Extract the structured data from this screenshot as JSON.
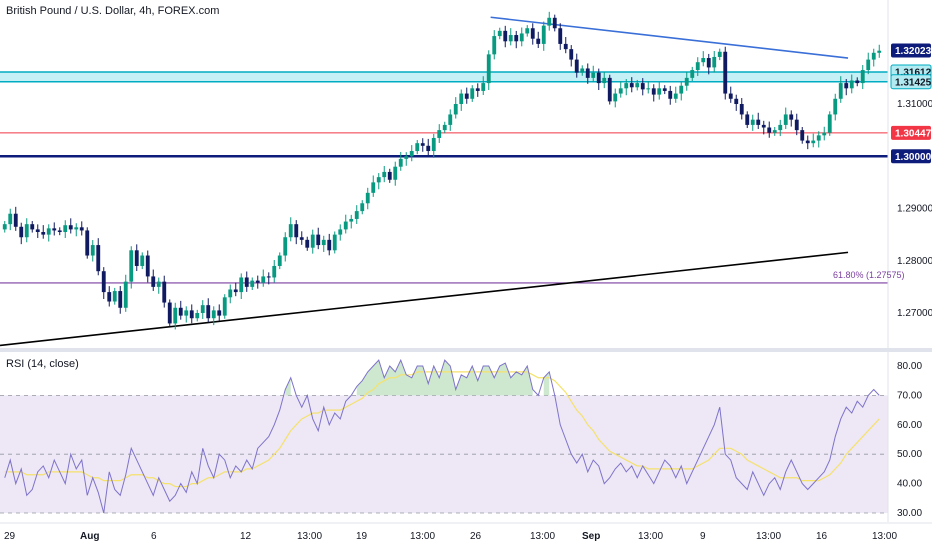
{
  "header": {
    "title": "British Pound / U.S. Dollar, 4h, FOREX.com",
    "rsi_title": "RSI (14, close)"
  },
  "colors": {
    "bull": "#089981",
    "bear": "#101a60",
    "trendline_upper": "#3a6fd8",
    "trendline_lower": "#000000",
    "zone_fill": "#b2ebf2",
    "zone_line": "#00acc1",
    "red_line": "#f23645",
    "navy_line": "#0d1b7a",
    "fib_line": "#7b3fa0",
    "rsi_line": "#7e73c9",
    "rsi_ma": "#f5e26b",
    "rsi_band": "#ede7f6"
  },
  "chart_data": [
    {
      "type": "candlestick",
      "title": "British Pound / U.S. Dollar, 4h, FOREX.com",
      "x_ticks": [
        "29",
        "Aug",
        "6",
        "12",
        "13:00",
        "19",
        "13:00",
        "26",
        "13:00",
        "Sep",
        "13:00",
        "9",
        "13:00",
        "16",
        "13:00"
      ],
      "y_ticks": [
        "1.31000",
        "1.29000",
        "1.28000",
        "1.27000"
      ],
      "y_range": [
        1.2635,
        1.3286
      ],
      "price_labels": [
        {
          "value": 1.32023,
          "text": "1.32023",
          "style": "navy"
        },
        {
          "value": 1.31612,
          "text": "1.31612",
          "style": "cyan"
        },
        {
          "value": 1.31425,
          "text": "1.31425",
          "style": "cyan"
        },
        {
          "value": 1.30447,
          "text": "1.30447",
          "style": "red"
        },
        {
          "value": 1.3,
          "text": "1.30000",
          "style": "navy"
        }
      ],
      "fib_label": "61.80% (1.27575)",
      "levels": {
        "zone_top": 1.31612,
        "zone_bottom": 1.31425,
        "red": 1.30447,
        "navy": 1.3,
        "fib": 1.27575
      },
      "trendlines": [
        {
          "name": "upper",
          "from": [
            0.5525,
            1.3266
          ],
          "to": [
            0.955,
            1.3188
          ]
        },
        {
          "name": "lower",
          "from": [
            0.0,
            1.2638
          ],
          "to": [
            0.955,
            1.2816
          ]
        }
      ],
      "series": [
        {
          "values": [
            1.287,
            1.289,
            1.2865,
            1.2845,
            1.287,
            1.286,
            1.2855,
            1.285,
            1.2862,
            1.2858,
            1.2855,
            1.2868,
            1.286,
            1.2864,
            1.2858,
            1.281,
            1.283,
            1.278,
            1.274,
            1.2722,
            1.2742,
            1.271,
            1.276,
            1.282,
            1.279,
            1.281,
            1.277,
            1.275,
            1.276,
            1.272,
            1.268,
            1.271,
            1.2695,
            1.2705,
            1.269,
            1.27,
            1.2715,
            1.269,
            1.2705,
            1.2695,
            1.273,
            1.2745,
            1.274,
            1.2768,
            1.275,
            1.2762,
            1.2758,
            1.277,
            1.2768,
            1.279,
            1.281,
            1.2845,
            1.287,
            1.2845,
            1.284,
            1.2825,
            1.285,
            1.283,
            1.284,
            1.282,
            1.285,
            1.286,
            1.2875,
            1.288,
            1.2895,
            1.291,
            1.293,
            1.295,
            1.296,
            1.297,
            1.2955,
            1.298,
            1.2995,
            1.3,
            1.301,
            1.3025,
            1.302,
            1.301,
            1.3035,
            1.305,
            1.306,
            1.308,
            1.31,
            1.312,
            1.311,
            1.313,
            1.3125,
            1.314,
            1.3195,
            1.323,
            1.324,
            1.322,
            1.3232,
            1.322,
            1.3235,
            1.3245,
            1.3225,
            1.3215,
            1.325,
            1.3265,
            1.3245,
            1.3215,
            1.3205,
            1.3185,
            1.316,
            1.3168,
            1.315,
            1.316,
            1.314,
            1.315,
            1.3105,
            1.312,
            1.313,
            1.314,
            1.3132,
            1.314,
            1.3128,
            1.313,
            1.3118,
            1.313,
            1.3125,
            1.311,
            1.312,
            1.3135,
            1.315,
            1.3165,
            1.318,
            1.3188,
            1.317,
            1.319,
            1.32,
            1.312,
            1.311,
            1.31,
            1.308,
            1.306,
            1.307,
            1.306,
            1.3055,
            1.3045,
            1.305,
            1.306,
            1.308,
            1.307,
            1.305,
            1.303,
            1.3025,
            1.303,
            1.304,
            1.3045,
            1.308,
            1.311,
            1.314,
            1.313,
            1.3145,
            1.314,
            1.3165,
            1.3185,
            1.3198,
            1.3202
          ]
        }
      ]
    },
    {
      "type": "line",
      "title": "RSI (14, close)",
      "y_ticks": [
        "80.00",
        "70.00",
        "60.00",
        "50.00",
        "40.00",
        "30.00"
      ],
      "y_range": [
        27,
        85
      ],
      "band": [
        30,
        70
      ],
      "series": [
        {
          "name": "RSI",
          "values": [
            42,
            48,
            40,
            45,
            36,
            38,
            44,
            46,
            42,
            48,
            44,
            40,
            50,
            45,
            48,
            36,
            42,
            37,
            30,
            44,
            38,
            36,
            43,
            52,
            48,
            44,
            40,
            36,
            42,
            38,
            34,
            36,
            40,
            37,
            44,
            40,
            52,
            46,
            42,
            50,
            48,
            42,
            46,
            44,
            48,
            45,
            52,
            54,
            56,
            60,
            65,
            72,
            76,
            70,
            66,
            70,
            62,
            58,
            66,
            60,
            64,
            62,
            68,
            70,
            73,
            75,
            78,
            80,
            82,
            76,
            80,
            78,
            82,
            77,
            76,
            80,
            80,
            74,
            80,
            76,
            82,
            80,
            72,
            77,
            76,
            80,
            75,
            80,
            80,
            76,
            80,
            81,
            76,
            78,
            77,
            80,
            72,
            70,
            76,
            78,
            70,
            60,
            55,
            50,
            47,
            50,
            44,
            48,
            46,
            40,
            42,
            45,
            47,
            44,
            46,
            42,
            46,
            43,
            40,
            44,
            48,
            46,
            42,
            46,
            40,
            44,
            48,
            52,
            56,
            60,
            66,
            50,
            48,
            42,
            40,
            38,
            44,
            40,
            36,
            40,
            42,
            38,
            44,
            48,
            44,
            40,
            38,
            40,
            42,
            44,
            48,
            56,
            62,
            66,
            64,
            68,
            66,
            70,
            72,
            70
          ]
        },
        {
          "name": "RSI MA",
          "values": [
            44,
            44,
            44,
            44,
            43,
            43,
            43,
            43,
            44,
            44,
            44,
            44,
            44,
            44,
            44,
            43,
            42,
            42,
            41,
            41,
            41,
            41,
            42,
            43,
            43,
            43,
            42,
            42,
            41,
            40,
            40,
            39,
            39,
            39,
            40,
            40,
            41,
            42,
            42,
            43,
            44,
            44,
            44,
            44,
            45,
            45,
            46,
            47,
            48,
            50,
            52,
            55,
            58,
            60,
            62,
            63,
            64,
            64,
            65,
            65,
            65,
            65,
            66,
            67,
            68,
            69,
            71,
            72,
            74,
            75,
            76,
            76,
            77,
            77,
            77,
            78,
            78,
            78,
            78,
            78,
            78,
            78,
            78,
            78,
            78,
            78,
            78,
            78,
            78,
            78,
            78,
            78,
            78,
            78,
            78,
            78,
            77,
            76,
            76,
            76,
            75,
            73,
            71,
            68,
            65,
            63,
            60,
            58,
            55,
            53,
            51,
            50,
            49,
            48,
            47,
            46,
            46,
            45,
            45,
            45,
            45,
            45,
            45,
            45,
            45,
            45,
            46,
            47,
            48,
            50,
            52,
            52,
            52,
            51,
            50,
            48,
            47,
            46,
            45,
            44,
            43,
            42,
            42,
            42,
            42,
            41,
            41,
            41,
            41,
            42,
            43,
            45,
            47,
            50,
            52,
            54,
            56,
            58,
            60,
            62
          ]
        }
      ]
    }
  ]
}
